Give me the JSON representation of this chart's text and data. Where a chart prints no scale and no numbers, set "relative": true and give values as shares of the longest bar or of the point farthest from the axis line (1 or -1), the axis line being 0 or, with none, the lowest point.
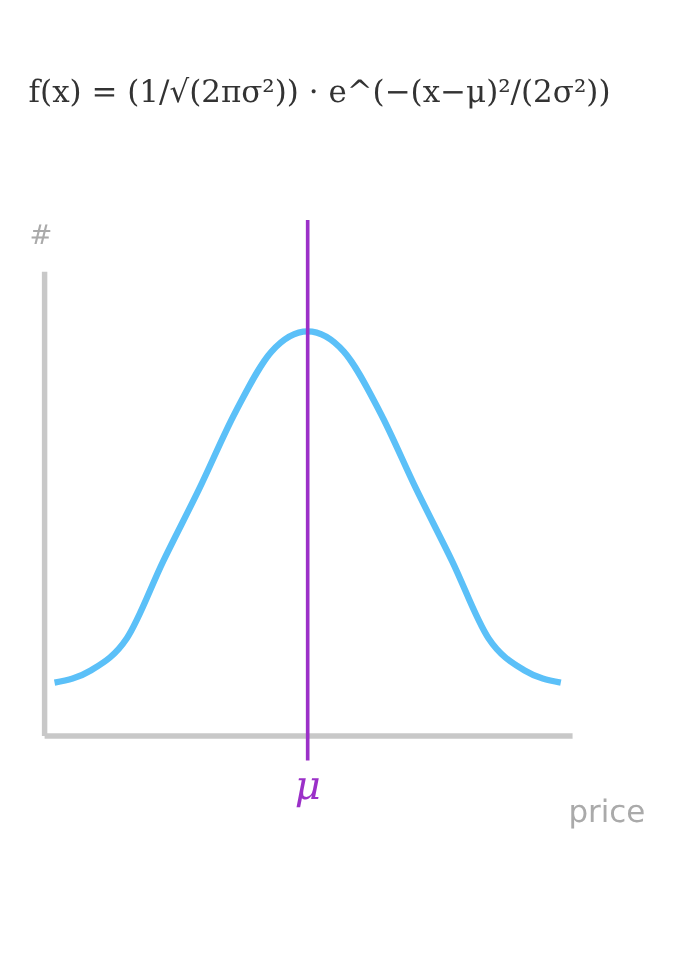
{
  "chart_data": {
    "type": "line",
    "title": "f(x) = (1/√(2πσ²)) · e^(−(x−μ)²/(2σ²))",
    "xlabel": "price",
    "ylabel": "#",
    "categories": [
      null,
      null,
      null,
      null,
      null,
      null,
      null,
      null,
      null,
      null,
      null,
      null,
      null,
      null,
      null
    ],
    "relative": true,
    "tick_labels": false,
    "grid": false,
    "marker": "none",
    "line_style": "solid",
    "series": [
      {
        "color": "#5bc0f8",
        "values": [
          0.13,
          0.16,
          0.24,
          0.43,
          0.61,
          0.8,
          0.95,
          1,
          0.95,
          0.8,
          0.61,
          0.43,
          0.24,
          0.16,
          0.13
        ]
      }
    ],
    "annotations": [
      "μ"
    ]
  }
}
